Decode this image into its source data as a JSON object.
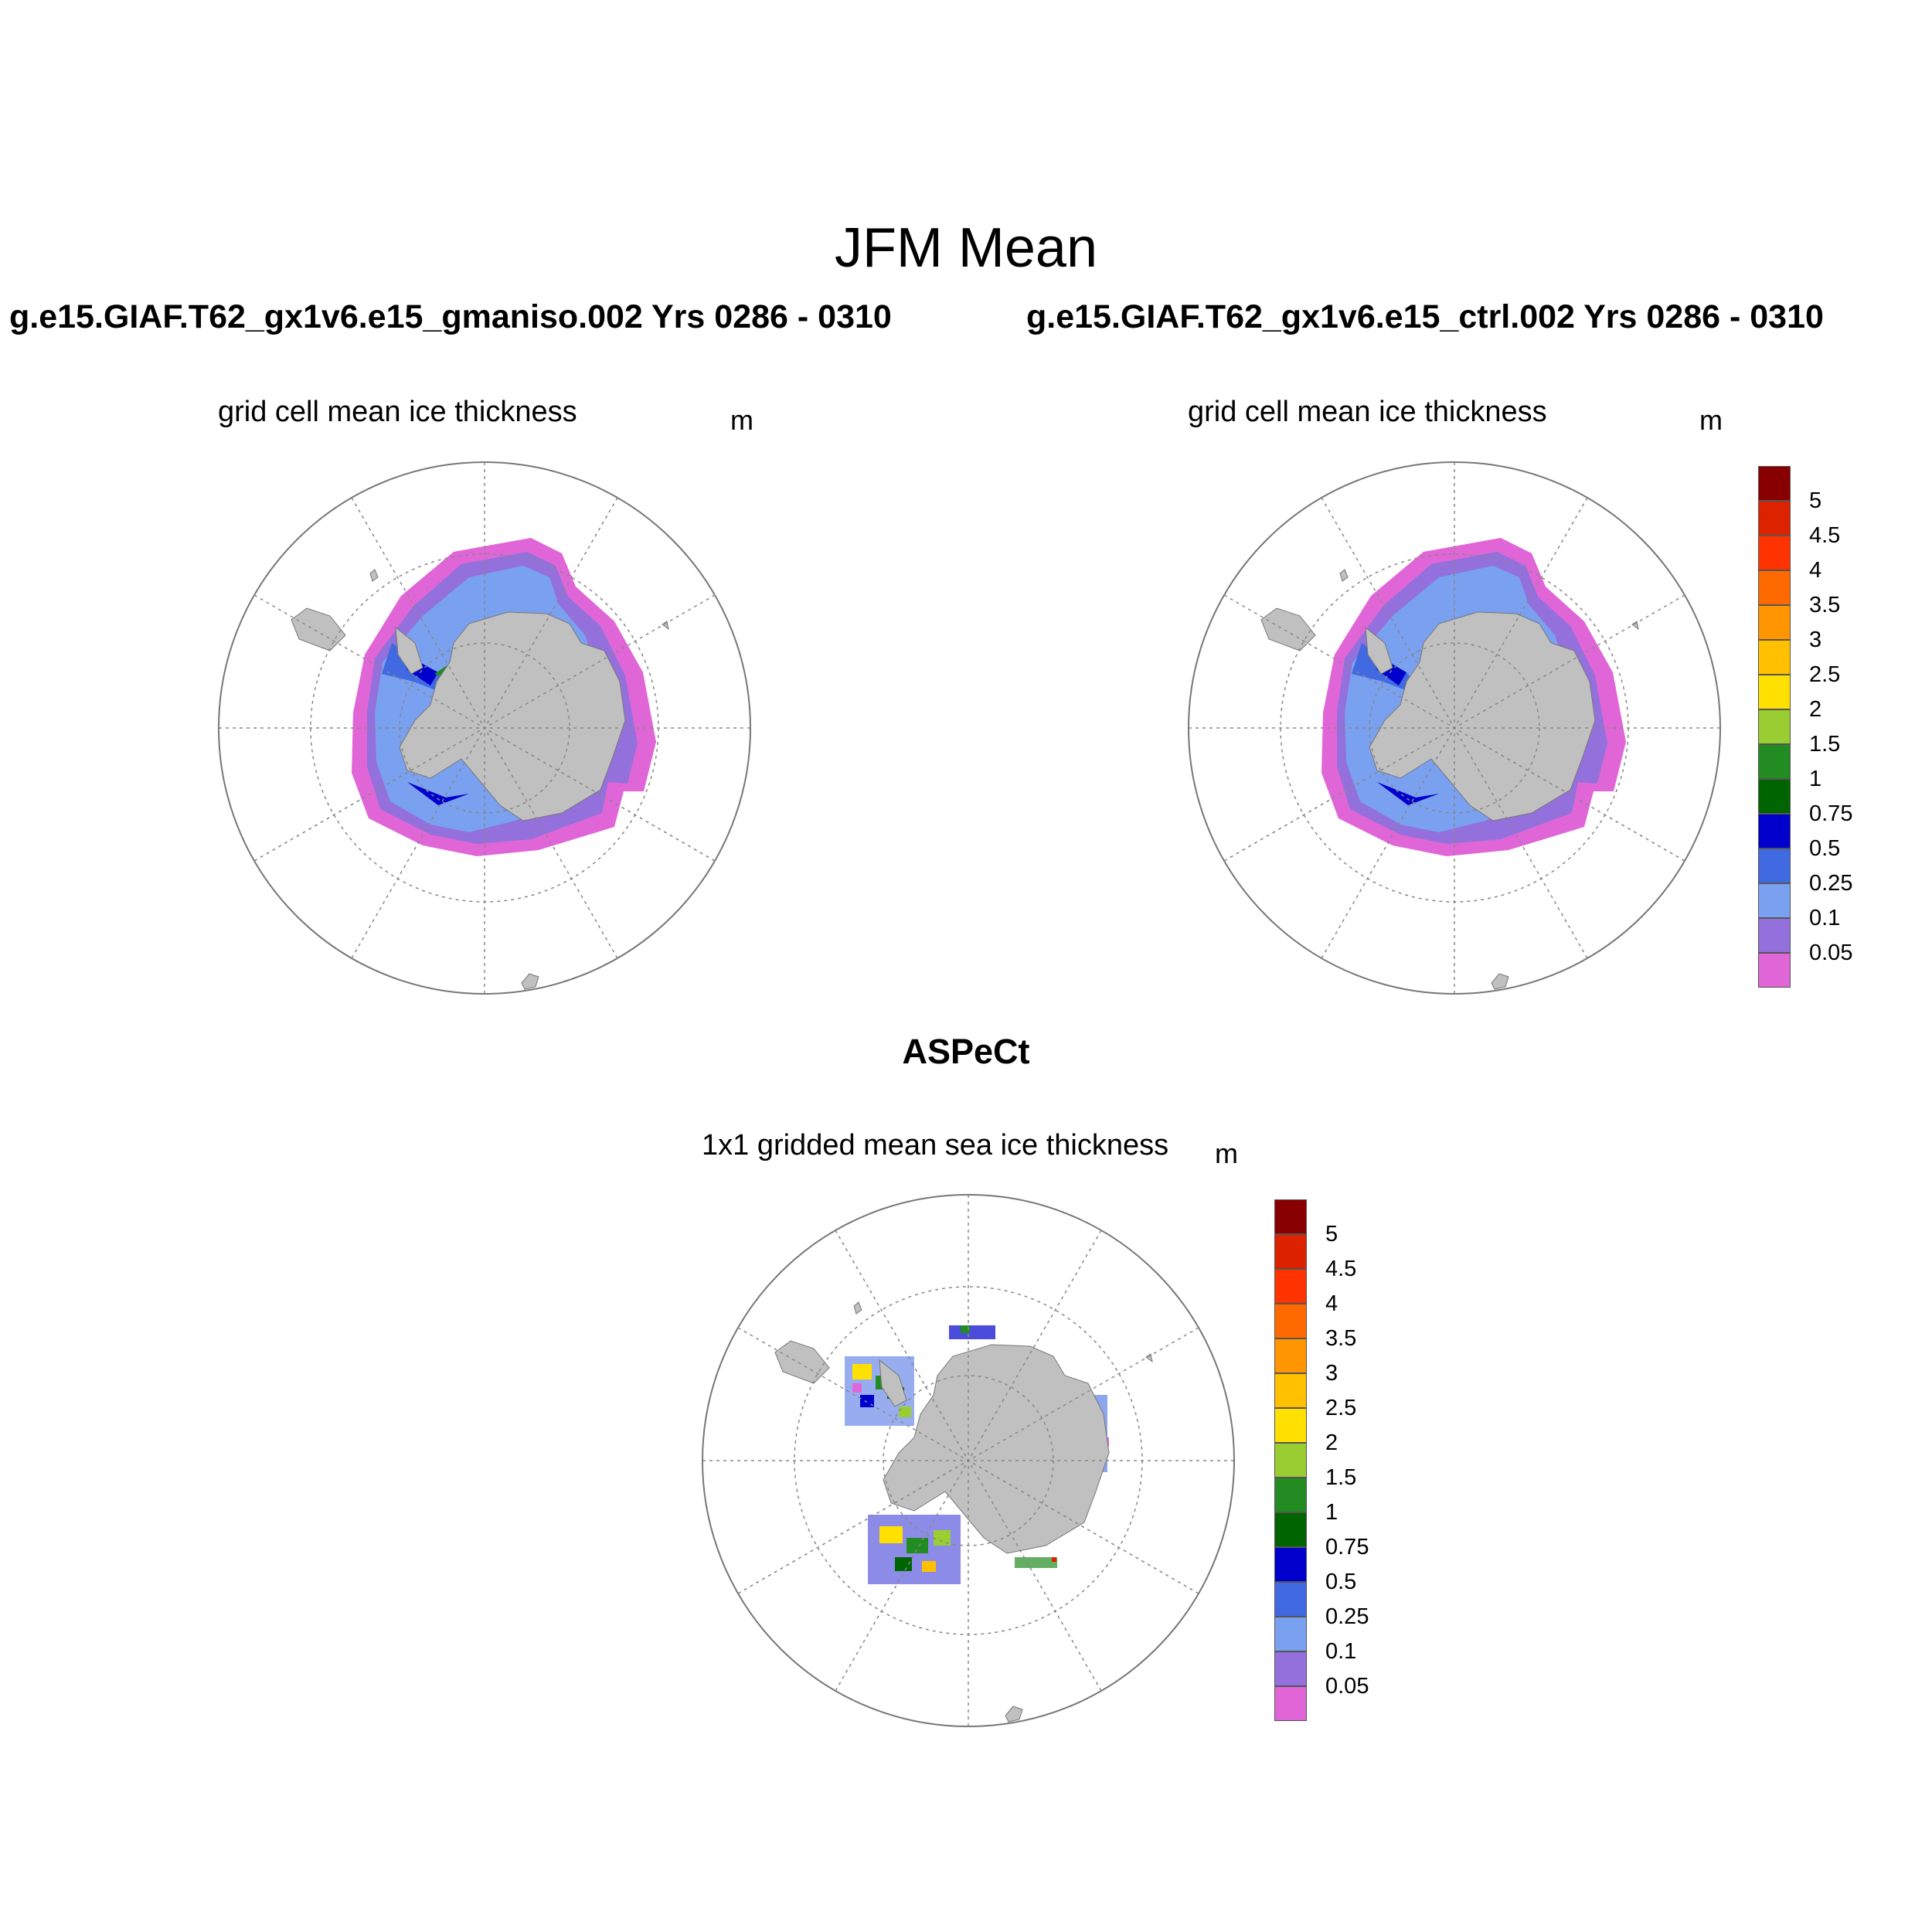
{
  "main_title": "JFM Mean",
  "panels": [
    {
      "case_title": "g.e15.GIAF.T62_gx1v6.e15_gmaniso.002  Yrs 0286 - 0310",
      "subtitle": "grid cell mean ice thickness",
      "units": "m"
    },
    {
      "case_title": "g.e15.GIAF.T62_gx1v6.e15_ctrl.002  Yrs 0286 - 0310",
      "subtitle": "grid cell mean ice thickness",
      "units": "m"
    },
    {
      "case_title": "ASPeCt",
      "subtitle": "1x1 gridded mean sea ice thickness",
      "units": "m"
    }
  ],
  "colorbar": {
    "levels": [
      "0.05",
      "0.1",
      "0.25",
      "0.5",
      "0.75",
      "1",
      "1.5",
      "2",
      "2.5",
      "3",
      "3.5",
      "4",
      "4.5",
      "5"
    ],
    "colors": [
      "#e066d8",
      "#9370db",
      "#7aa0f0",
      "#4169e1",
      "#0000cd",
      "#006400",
      "#228b22",
      "#9acd32",
      "#ffe000",
      "#ffc000",
      "#ff9500",
      "#ff6a00",
      "#ff3300",
      "#dd2200",
      "#880000"
    ]
  },
  "map_colors": {
    "land": "#c0c0c0",
    "grid": "#888888"
  }
}
